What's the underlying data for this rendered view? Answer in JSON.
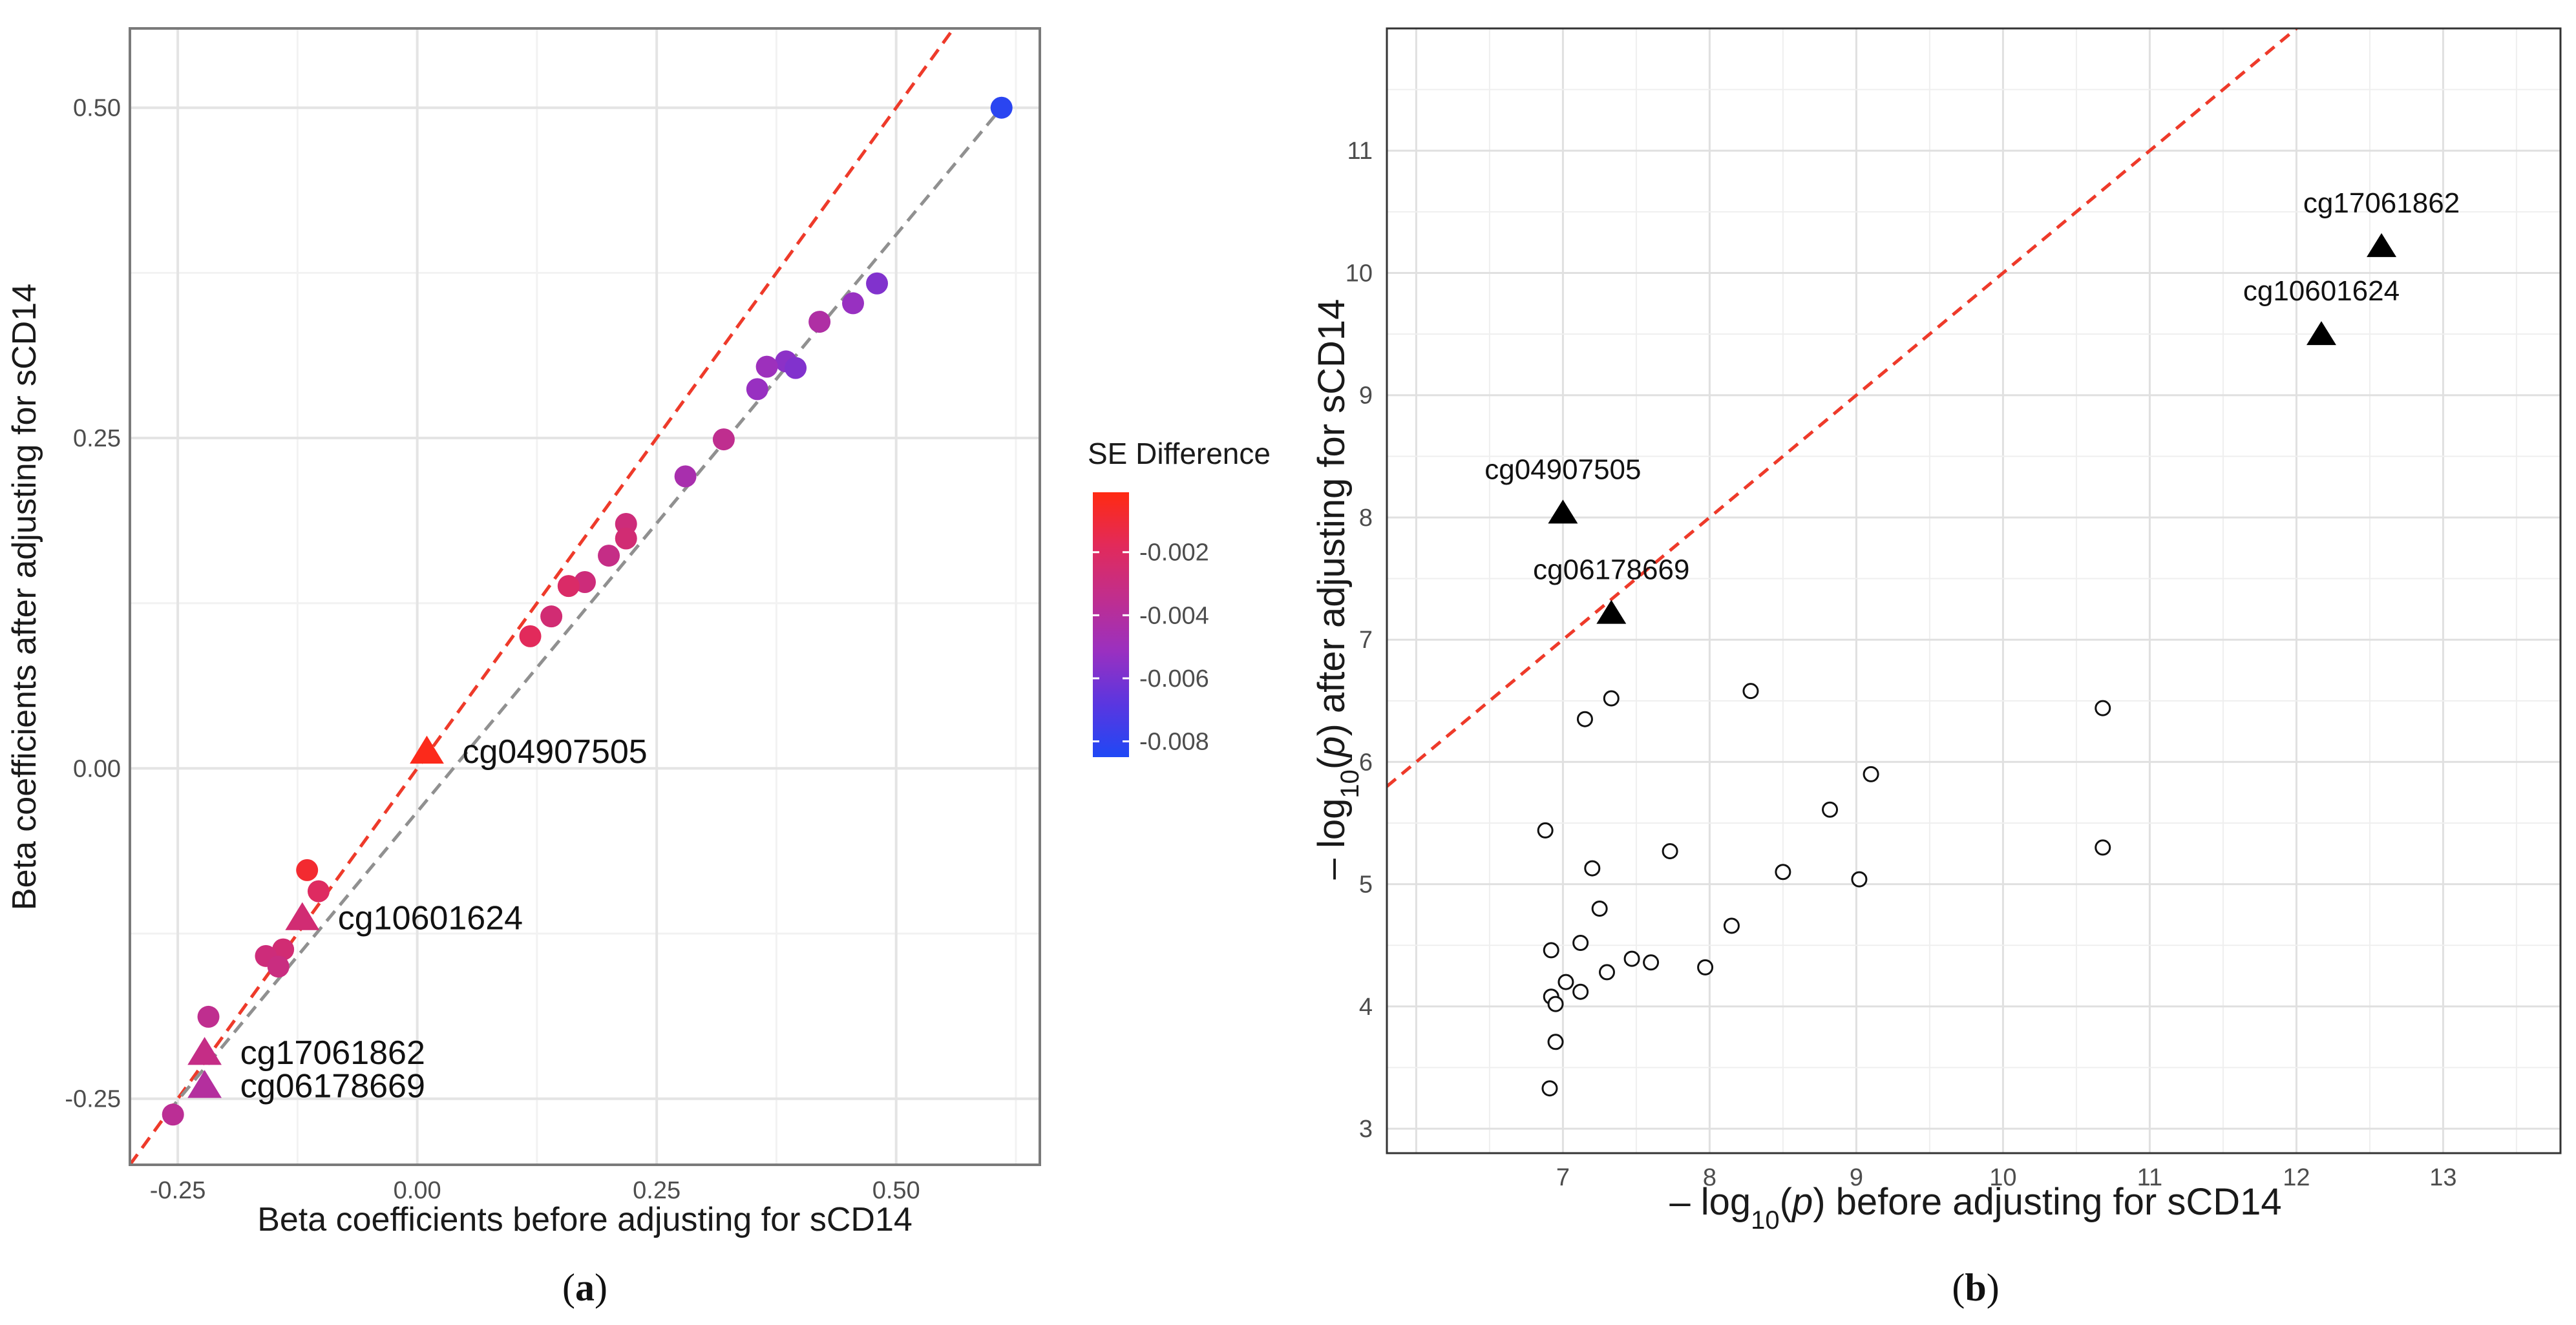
{
  "figure": {
    "panel_a_label_prefix": "(",
    "panel_a_label_letter": "a",
    "panel_a_label_suffix": ")",
    "panel_b_label_prefix": "(",
    "panel_b_label_letter": "b",
    "panel_b_label_suffix": ")"
  },
  "chart_data": [
    {
      "type": "scatter",
      "title": "",
      "xlabel": "Beta coefficients before adjusting for sCD14",
      "ylabel": "Beta coefficients after adjusting for sCD14",
      "xlim": [
        -0.3,
        0.65
      ],
      "ylim": [
        -0.3,
        0.56
      ],
      "xticks": [
        -0.25,
        0.0,
        0.25,
        0.5
      ],
      "xtick_labels": [
        "-0.25",
        "0.00",
        "0.25",
        "0.50"
      ],
      "yticks": [
        -0.25,
        0.0,
        0.25,
        0.5
      ],
      "ytick_labels": [
        "-0.25",
        "0.00",
        "0.25",
        "0.50"
      ],
      "grid": true,
      "colorbar": {
        "title": "SE Difference",
        "range": [
          -0.0085,
          -0.0001
        ],
        "ticks": [
          -0.002,
          -0.004,
          -0.006,
          -0.008
        ],
        "tick_labels": [
          "-0.002",
          "-0.004",
          "-0.006",
          "-0.008"
        ],
        "colors": [
          "#ff2a12",
          "#e22a5a",
          "#c02e8e",
          "#9a30c0",
          "#5a36e0",
          "#1f48f5"
        ]
      },
      "reference_lines": [
        {
          "name": "identity",
          "style": "dashed",
          "color": "#ee3a2a",
          "slope": 1,
          "intercept": 0
        },
        {
          "name": "fit",
          "style": "dashed",
          "color": "#909090",
          "from": [
            -0.26,
            -0.26
          ],
          "to": [
            0.61,
            0.5
          ]
        }
      ],
      "points": [
        {
          "x": 0.61,
          "y": 0.5,
          "se_diff": -0.0082,
          "shape": "circle"
        },
        {
          "x": 0.48,
          "y": 0.367,
          "se_diff": -0.0058,
          "shape": "circle"
        },
        {
          "x": 0.455,
          "y": 0.352,
          "se_diff": -0.0052,
          "shape": "circle"
        },
        {
          "x": 0.42,
          "y": 0.338,
          "se_diff": -0.0042,
          "shape": "circle"
        },
        {
          "x": 0.385,
          "y": 0.308,
          "se_diff": -0.0055,
          "shape": "circle"
        },
        {
          "x": 0.365,
          "y": 0.304,
          "se_diff": -0.005,
          "shape": "circle"
        },
        {
          "x": 0.395,
          "y": 0.303,
          "se_diff": -0.0058,
          "shape": "circle"
        },
        {
          "x": 0.355,
          "y": 0.287,
          "se_diff": -0.0052,
          "shape": "circle"
        },
        {
          "x": 0.32,
          "y": 0.249,
          "se_diff": -0.0035,
          "shape": "circle"
        },
        {
          "x": 0.28,
          "y": 0.221,
          "se_diff": -0.0045,
          "shape": "circle"
        },
        {
          "x": 0.218,
          "y": 0.185,
          "se_diff": -0.0028,
          "shape": "circle"
        },
        {
          "x": 0.218,
          "y": 0.174,
          "se_diff": -0.0026,
          "shape": "circle"
        },
        {
          "x": 0.2,
          "y": 0.161,
          "se_diff": -0.0032,
          "shape": "circle"
        },
        {
          "x": 0.175,
          "y": 0.141,
          "se_diff": -0.0028,
          "shape": "circle"
        },
        {
          "x": 0.158,
          "y": 0.138,
          "se_diff": -0.0022,
          "shape": "circle"
        },
        {
          "x": 0.14,
          "y": 0.115,
          "se_diff": -0.0026,
          "shape": "circle"
        },
        {
          "x": 0.118,
          "y": 0.1,
          "se_diff": -0.0018,
          "shape": "circle"
        },
        {
          "x": 0.01,
          "y": 0.013,
          "se_diff": -0.0003,
          "shape": "triangle",
          "label": "cg04907505"
        },
        {
          "x": -0.115,
          "y": -0.077,
          "se_diff": -0.0008,
          "shape": "circle"
        },
        {
          "x": -0.103,
          "y": -0.093,
          "se_diff": -0.002,
          "shape": "circle"
        },
        {
          "x": -0.12,
          "y": -0.113,
          "se_diff": -0.0026,
          "shape": "triangle",
          "label": "cg10601624"
        },
        {
          "x": -0.14,
          "y": -0.137,
          "se_diff": -0.0026,
          "shape": "circle"
        },
        {
          "x": -0.158,
          "y": -0.142,
          "se_diff": -0.0028,
          "shape": "circle"
        },
        {
          "x": -0.145,
          "y": -0.15,
          "se_diff": -0.003,
          "shape": "circle"
        },
        {
          "x": -0.218,
          "y": -0.188,
          "se_diff": -0.0035,
          "shape": "circle"
        },
        {
          "x": -0.222,
          "y": -0.215,
          "se_diff": -0.0032,
          "shape": "triangle",
          "label": "cg17061862"
        },
        {
          "x": -0.222,
          "y": -0.24,
          "se_diff": -0.004,
          "shape": "triangle",
          "label": "cg06178669"
        },
        {
          "x": -0.255,
          "y": -0.262,
          "se_diff": -0.0037,
          "shape": "circle"
        }
      ]
    },
    {
      "type": "scatter",
      "title": "",
      "xlabel": "– log10(p) before adjusting for sCD14",
      "xlabel_parts": [
        "– log",
        "10",
        "(",
        "p",
        ") before adjusting for sCD14"
      ],
      "ylabel": "– log10(p) after adjusting for sCD14",
      "ylabel_parts": [
        "– log",
        "10",
        "(",
        "p",
        ") after adjusting for sCD14"
      ],
      "xlim": [
        5.8,
        13.8
      ],
      "ylim": [
        2.8,
        12.0
      ],
      "xticks": [
        7,
        8,
        9,
        10,
        11,
        12,
        13
      ],
      "xtick_labels": [
        "7",
        "8",
        "9",
        "10",
        "11",
        "12",
        "13"
      ],
      "yticks": [
        3,
        4,
        5,
        6,
        7,
        8,
        9,
        10,
        11
      ],
      "ytick_labels": [
        "3",
        "4",
        "5",
        "6",
        "7",
        "8",
        "9",
        "10",
        "11"
      ],
      "grid": true,
      "reference_lines": [
        {
          "name": "identity",
          "style": "dashed",
          "color": "#ee3a2a",
          "slope": 1,
          "intercept": 0
        }
      ],
      "highlighted": [
        {
          "x": 12.58,
          "y": 10.22,
          "label": "cg17061862"
        },
        {
          "x": 12.17,
          "y": 9.5,
          "label": "cg10601624"
        },
        {
          "x": 7.0,
          "y": 8.04,
          "label": "cg04907505"
        },
        {
          "x": 7.33,
          "y": 7.22,
          "label": "cg06178669"
        }
      ],
      "points": [
        {
          "x": 8.28,
          "y": 6.58
        },
        {
          "x": 7.33,
          "y": 6.52
        },
        {
          "x": 7.15,
          "y": 6.35
        },
        {
          "x": 10.68,
          "y": 6.44
        },
        {
          "x": 9.1,
          "y": 5.9
        },
        {
          "x": 8.82,
          "y": 5.61
        },
        {
          "x": 6.88,
          "y": 5.44
        },
        {
          "x": 10.68,
          "y": 5.3
        },
        {
          "x": 7.73,
          "y": 5.27
        },
        {
          "x": 7.2,
          "y": 5.13
        },
        {
          "x": 8.5,
          "y": 5.1
        },
        {
          "x": 9.02,
          "y": 5.04
        },
        {
          "x": 7.25,
          "y": 4.8
        },
        {
          "x": 8.15,
          "y": 4.66
        },
        {
          "x": 7.12,
          "y": 4.52
        },
        {
          "x": 6.92,
          "y": 4.46
        },
        {
          "x": 7.47,
          "y": 4.39
        },
        {
          "x": 7.6,
          "y": 4.36
        },
        {
          "x": 7.97,
          "y": 4.32
        },
        {
          "x": 7.3,
          "y": 4.28
        },
        {
          "x": 7.02,
          "y": 4.2
        },
        {
          "x": 7.12,
          "y": 4.12
        },
        {
          "x": 6.92,
          "y": 4.08
        },
        {
          "x": 6.95,
          "y": 4.02
        },
        {
          "x": 6.95,
          "y": 3.71
        },
        {
          "x": 6.91,
          "y": 3.33
        }
      ]
    }
  ]
}
